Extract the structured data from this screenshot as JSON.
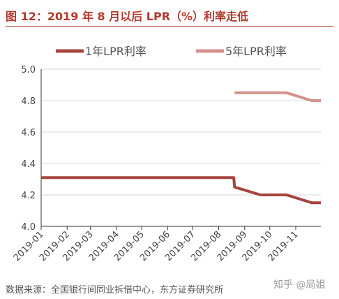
{
  "figure_title": "图 12：2019 年 8 月以后 LPR（%）利率走低",
  "source_note": "数据来源：全国银行间同业拆借中心，东方证券研究所",
  "watermark": "知乎 @局姐",
  "colors": {
    "title": "#b23a2e",
    "series_1y": "#a5463f",
    "series_5y": "#d4928c",
    "axis": "#333333",
    "grid": "#d9d9d9"
  },
  "chart_data": {
    "type": "line",
    "title": "",
    "xlabel": "",
    "ylabel": "",
    "ylim": [
      4.0,
      5.0
    ],
    "yticks": [
      "4.0",
      "4.2",
      "4.4",
      "4.6",
      "4.8",
      "5.0"
    ],
    "xticks": [
      "2019-01",
      "2019-02",
      "2019-03",
      "2019-04",
      "2019-05",
      "2019-06",
      "2019-07",
      "2019-08",
      "2019-09",
      "2019-10",
      "2019-11"
    ],
    "xlim": [
      "2019-01-01",
      "2019-12-01"
    ],
    "grid": "horizontal",
    "legend_position": "top",
    "series": [
      {
        "name": "1年LPR利率",
        "color": "#a5463f",
        "points": [
          {
            "x": "2019-01-01",
            "y": 4.31
          },
          {
            "x": "2019-08-19",
            "y": 4.31
          },
          {
            "x": "2019-08-20",
            "y": 4.25
          },
          {
            "x": "2019-09-20",
            "y": 4.2
          },
          {
            "x": "2019-10-21",
            "y": 4.2
          },
          {
            "x": "2019-11-20",
            "y": 4.15
          },
          {
            "x": "2019-12-01",
            "y": 4.15
          }
        ]
      },
      {
        "name": "5年LPR利率",
        "color": "#d4928c",
        "points": [
          {
            "x": "2019-08-20",
            "y": 4.85
          },
          {
            "x": "2019-10-21",
            "y": 4.85
          },
          {
            "x": "2019-11-20",
            "y": 4.8
          },
          {
            "x": "2019-12-01",
            "y": 4.8
          }
        ]
      }
    ]
  }
}
